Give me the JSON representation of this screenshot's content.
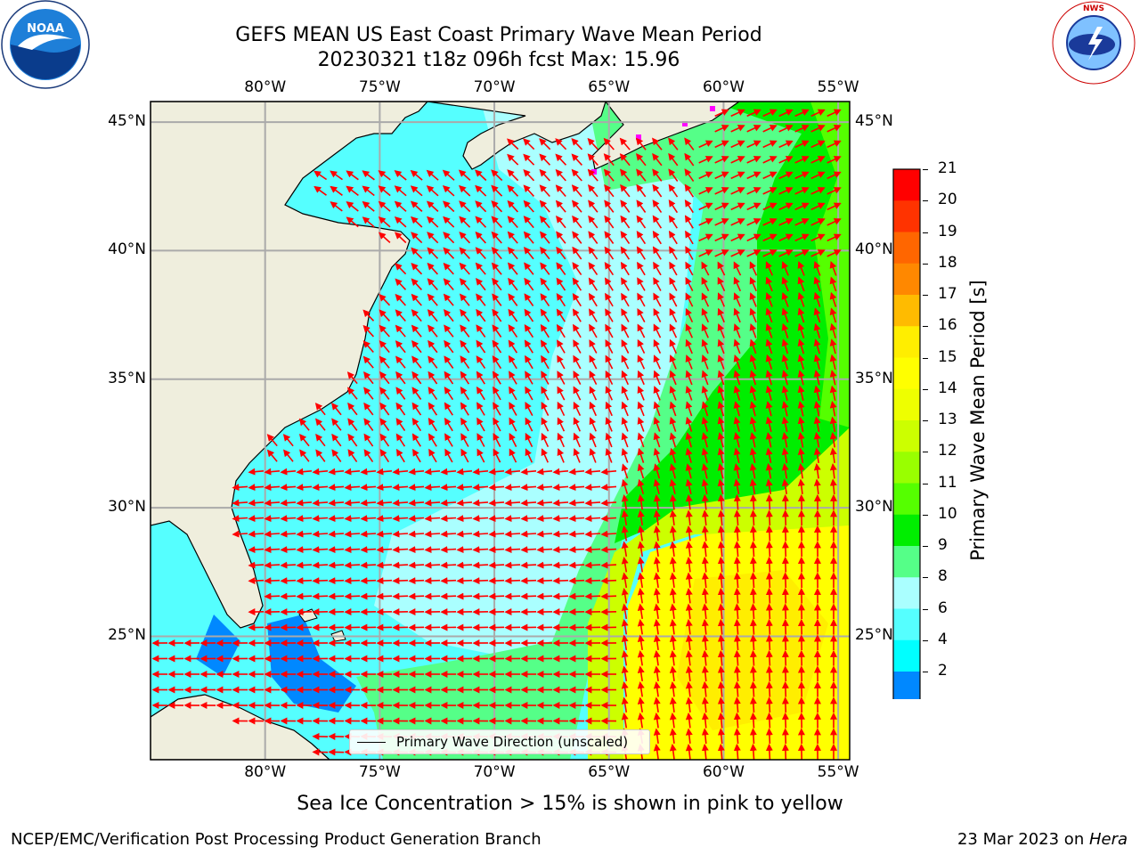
{
  "header": {
    "title_line1": "GEFS MEAN US East Coast Primary Wave Mean Period",
    "title_line2": "20230321 t18z 096h fcst   Max: 15.96"
  },
  "logos": {
    "left": "NOAA",
    "right": "NATIONAL WEATHER SERVICE"
  },
  "map": {
    "lon_labels": [
      "80°W",
      "75°W",
      "70°W",
      "65°W",
      "60°W",
      "55°W"
    ],
    "lat_labels": [
      "45°N",
      "40°N",
      "35°N",
      "30°N",
      "25°N"
    ],
    "extent": {
      "lon_min": -85,
      "lon_max": -54.5,
      "lat_min": 20.2,
      "lat_max": 45.8
    },
    "colors": {
      "land": "#efeedd",
      "border": "#000000",
      "grid": "#aaaaaa",
      "arrow": "#ff0000"
    }
  },
  "legend": {
    "label": "Primary Wave Direction (unscaled)"
  },
  "colorbar": {
    "label": "Primary Wave Mean Period [s]",
    "ticks": [
      "21",
      "20",
      "19",
      "18",
      "17",
      "16",
      "15",
      "14",
      "13",
      "12",
      "11",
      "10",
      "9",
      "8",
      "6",
      "4",
      "2"
    ],
    "colors": [
      "#ff0000",
      "#ff3300",
      "#ff6600",
      "#ff8800",
      "#ffbb00",
      "#ffee00",
      "#ffff00",
      "#eeff00",
      "#ccff00",
      "#99ff00",
      "#55ff00",
      "#00ee00",
      "#55ff88",
      "#aaffff",
      "#55ffff",
      "#00ffff",
      "#0088ff"
    ],
    "extend_color": "#0000ff"
  },
  "caption": "Sea Ice Concentration > 15% is shown in pink to yellow",
  "footer": {
    "left": "NCEP/EMC/Verification Post Processing Product Generation Branch",
    "right_date": "23 Mar 2023 on ",
    "right_host": "Hera"
  }
}
